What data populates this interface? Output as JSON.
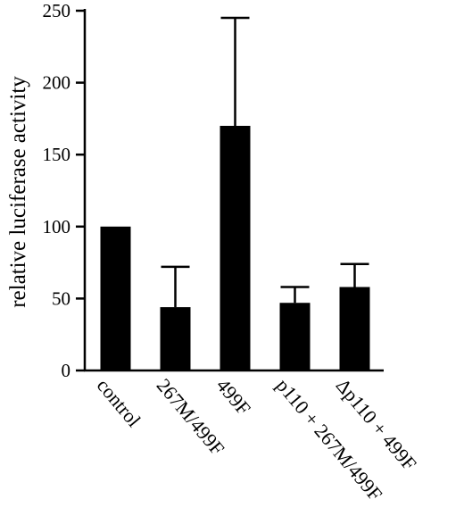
{
  "chart_data": {
    "type": "bar",
    "title": "",
    "xlabel": "",
    "ylabel": "relative luciferase activity",
    "categories": [
      "control",
      "267M/499F",
      "499F",
      "p110 + 267M/499F",
      "Δp110 + 499F"
    ],
    "values": [
      100,
      44,
      170,
      47,
      58
    ],
    "error_upper": [
      0,
      72,
      245,
      58,
      74
    ],
    "ylim": [
      0,
      250
    ],
    "yticks": [
      0,
      50,
      100,
      150,
      200,
      250
    ],
    "ytick_labels": [
      "0",
      "50",
      "100",
      "150",
      "200",
      "250"
    ],
    "grid": false,
    "legend": "none",
    "bar_color": "#000000"
  }
}
